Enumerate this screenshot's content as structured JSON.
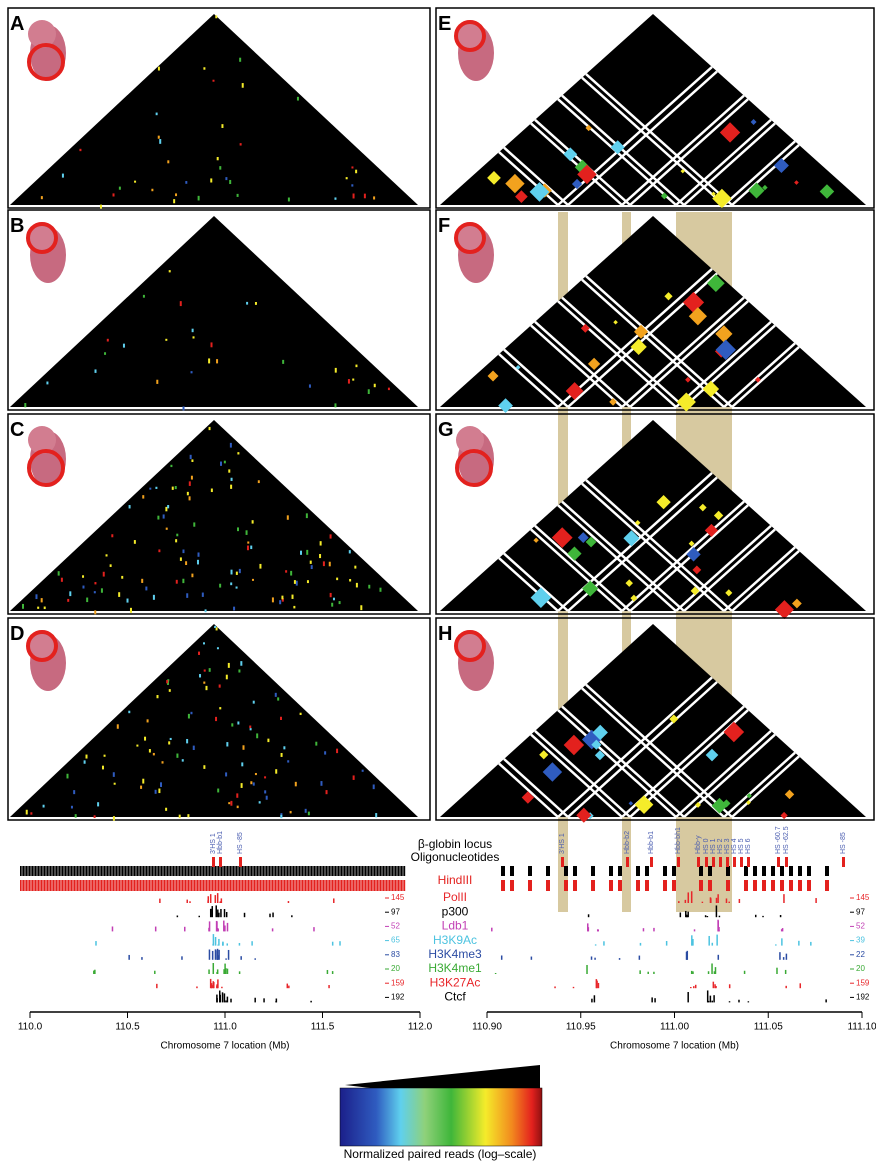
{
  "panel_labels": [
    "A",
    "B",
    "C",
    "D",
    "E",
    "F",
    "G",
    "H"
  ],
  "tracks": {
    "locus_label": "β-globin locus",
    "oligo_label": "Oligonucleotides",
    "hindiii_label": "HindIII",
    "rows": [
      {
        "name": "PolII",
        "color": "#e8262a",
        "left_max": 145,
        "right_max": 145
      },
      {
        "name": "p300",
        "color": "#000000",
        "left_max": 97,
        "right_max": 97
      },
      {
        "name": "Ldb1",
        "color": "#c23fb5",
        "left_max": 52,
        "right_max": 52
      },
      {
        "name": "H3K9Ac",
        "color": "#4cc3e0",
        "left_max": 65,
        "right_max": 39
      },
      {
        "name": "H3K4me3",
        "color": "#2b4ca3",
        "left_max": 83,
        "right_max": 22
      },
      {
        "name": "H3K4me1",
        "color": "#3aaa35",
        "left_max": 20,
        "right_max": 20
      },
      {
        "name": "H3K27Ac",
        "color": "#e8262a",
        "left_max": 159,
        "right_max": 159
      },
      {
        "name": "Ctcf",
        "color": "#000000",
        "left_max": 192,
        "right_max": 192
      }
    ]
  },
  "left_axis": {
    "ticks": [
      "110.0",
      "110.5",
      "111.0",
      "111.5",
      "112.0"
    ],
    "label": "Chromosome 7 location (Mb)",
    "genes": [
      "3'HS 1",
      "Hbb-b1",
      "HS -85"
    ]
  },
  "right_axis": {
    "ticks": [
      "110.90",
      "110.95",
      "111.00",
      "111.05",
      "111.10"
    ],
    "label": "Chromosome 7 location (Mb)",
    "genes": [
      "3'HS 1",
      "Hbb-b2",
      "Hbb-b1",
      "Hbb-bh1",
      "Hbb-y",
      "HS 0",
      "HS 1",
      "HS 2",
      "HS 3",
      "HS 4",
      "HS 5",
      "HS 6",
      "HS -60.7",
      "HS -62.5",
      "HS -85"
    ]
  },
  "colorbar_label": "Normalized paired reads (log–scale)"
}
